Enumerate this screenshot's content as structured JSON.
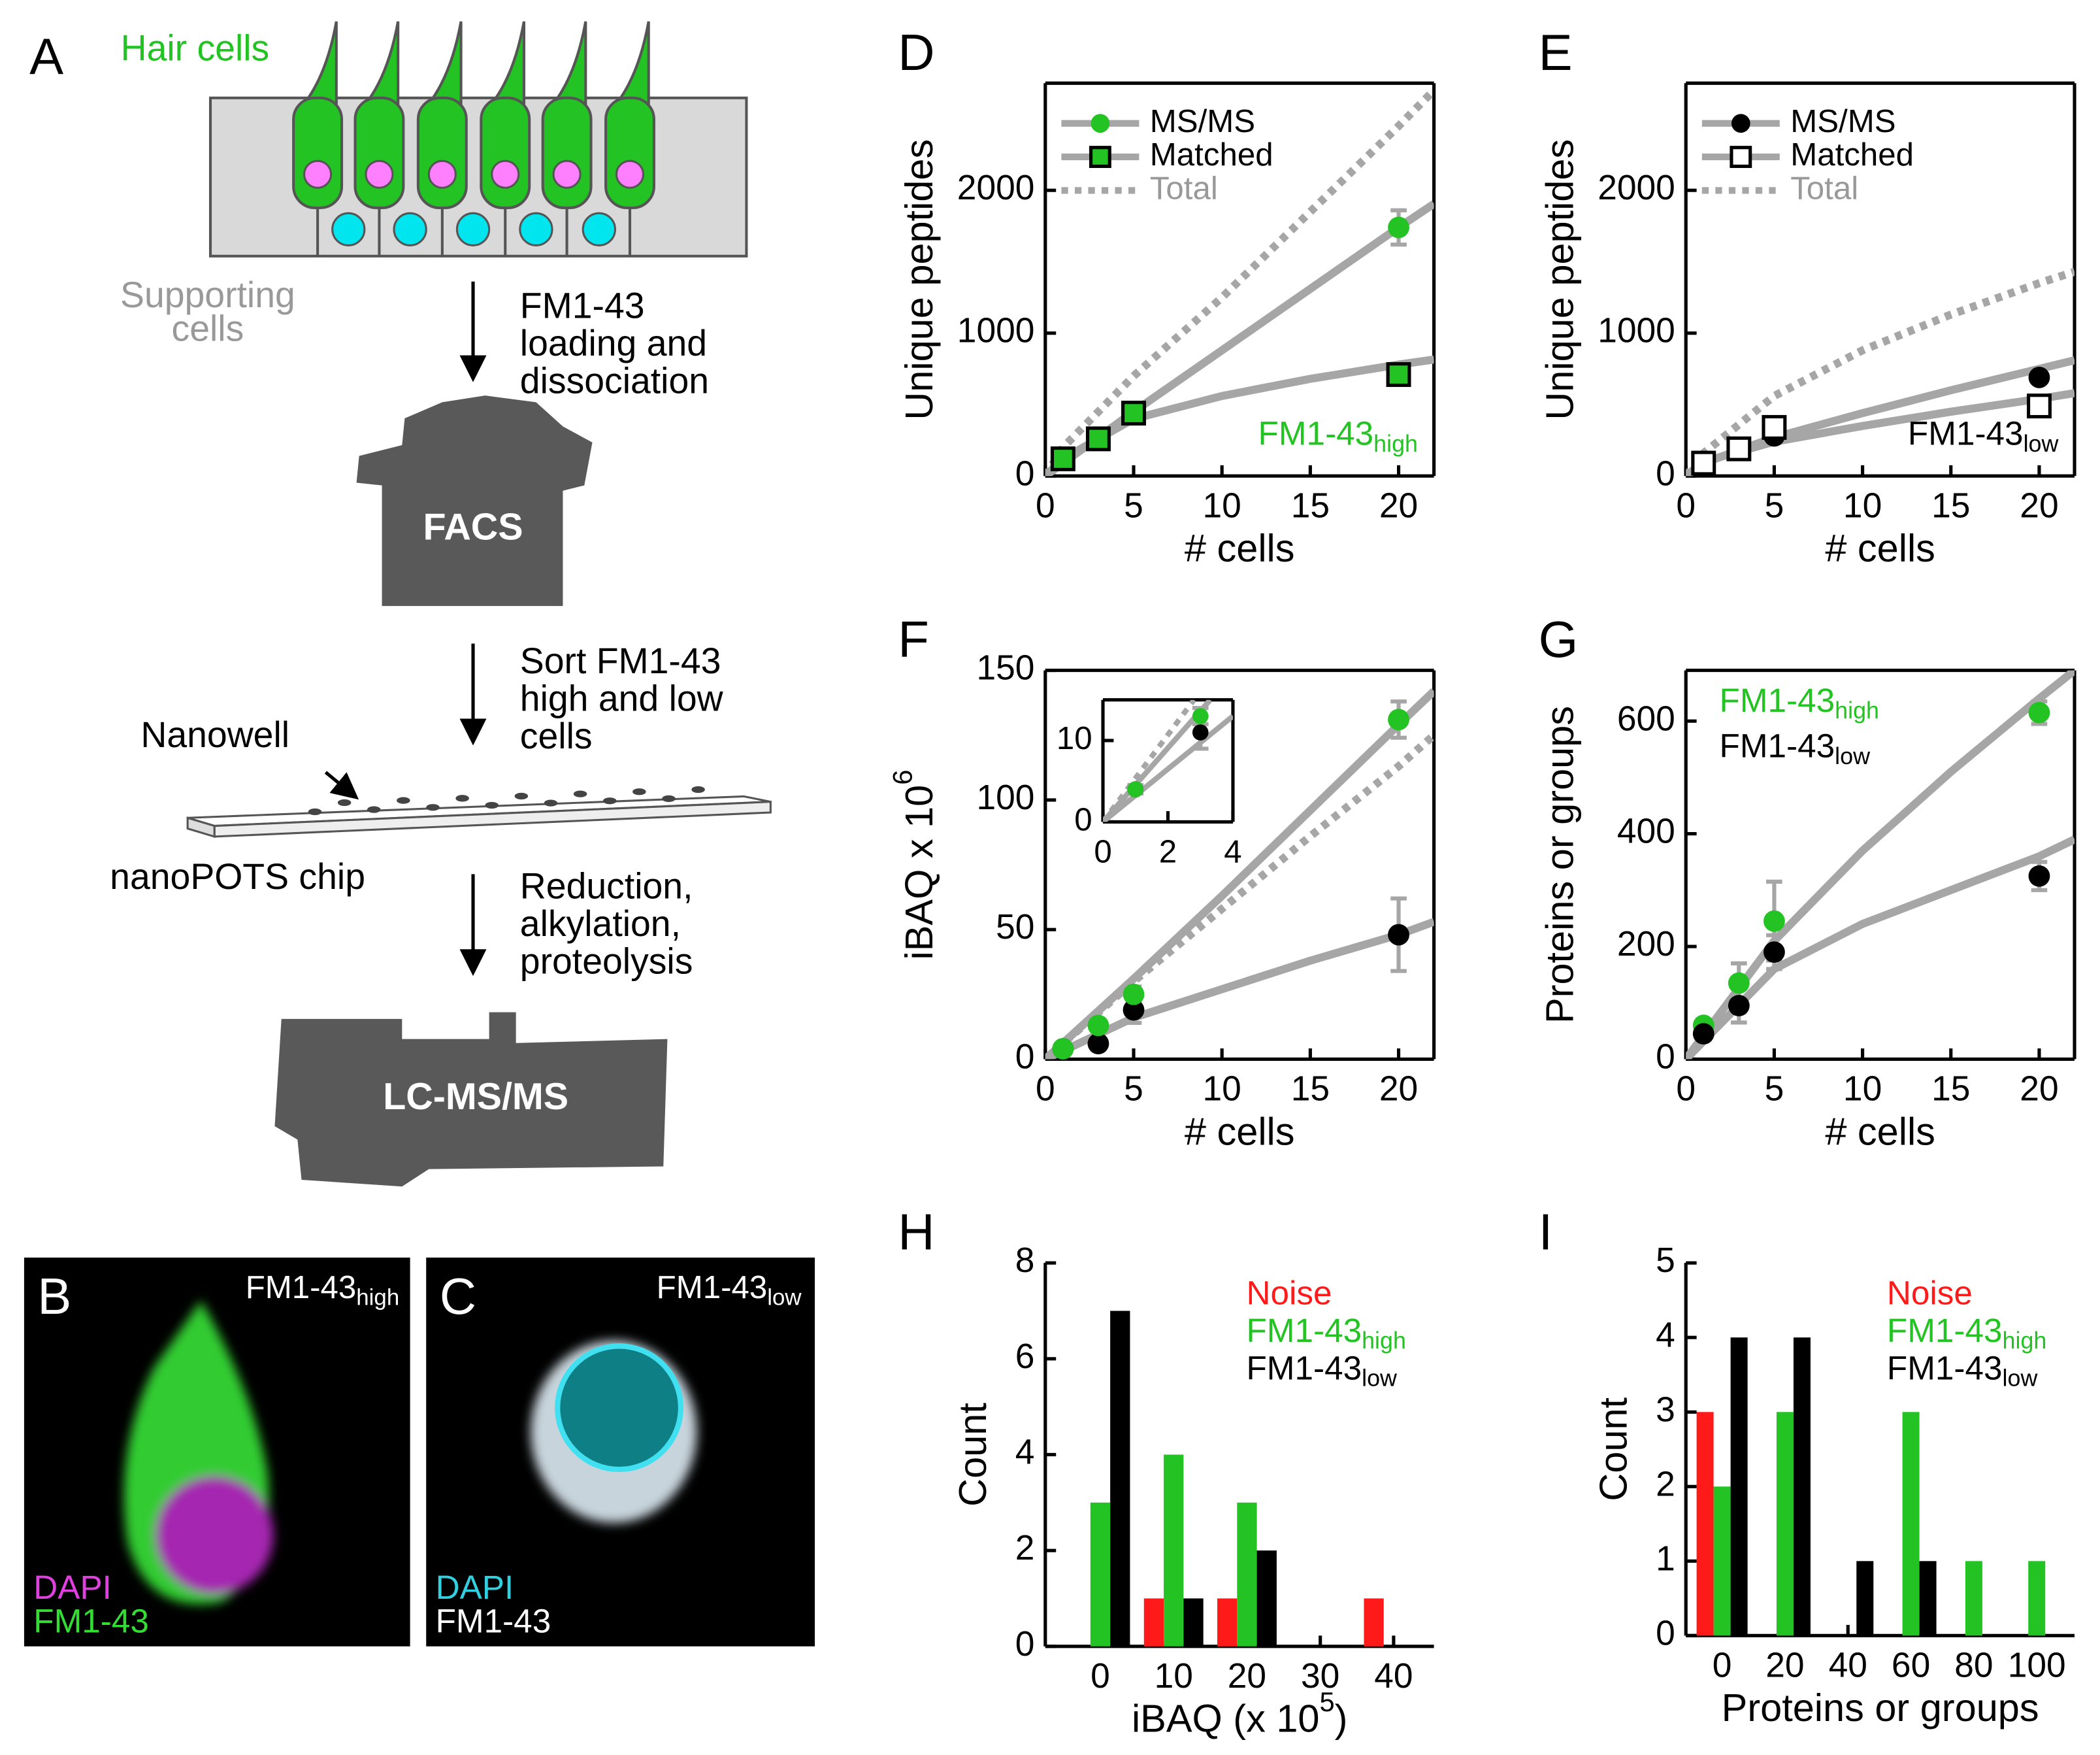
{
  "diagram": {
    "label": "A",
    "hair_cells": "Hair cells",
    "supporting_cells": [
      "Supporting",
      "cells"
    ],
    "step1": [
      "FM1-43",
      "loading and",
      "dissociation"
    ],
    "facs": "FACS",
    "step2": [
      "Sort FM1-43",
      "high and low",
      "cells"
    ],
    "nanowell": "Nanowell",
    "chip": "nanoPOTS chip",
    "step3": [
      "Reduction,",
      "alkylation,",
      "proteolysis"
    ],
    "lcms": "LC-MS/MS"
  },
  "images": [
    {
      "label": "B",
      "title": {
        "text": "FM1-43",
        "sub": "high"
      },
      "channels": [
        "DAPI",
        "FM1-43"
      ]
    },
    {
      "label": "C",
      "title": {
        "text": "FM1-43",
        "sub": "low"
      },
      "channels": [
        "DAPI",
        "FM1-43"
      ]
    }
  ],
  "chart_data": [
    {
      "type": "scatter",
      "label": "D",
      "xlabel": "# cells",
      "ylabel": "Unique peptides",
      "xlim": [
        0,
        22
      ],
      "ylim": [
        0,
        2750
      ],
      "xticks": [
        0,
        5,
        10,
        15,
        20
      ],
      "yticks": [
        0,
        1000,
        2000
      ],
      "frame": true,
      "fit_color": "#a6a6a6",
      "legend": "upper left",
      "legend_style": "symbol",
      "annotation": {
        "text": "FM1-43",
        "sub": "high",
        "color": "#22c322"
      },
      "series": [
        {
          "name": "MS/MS",
          "label_color": "#000000",
          "marker": "circle",
          "color": "#22c322",
          "edge": "none",
          "x": [
            1,
            3,
            5,
            20
          ],
          "values": [
            120,
            270,
            450,
            1740
          ],
          "errors": [
            20,
            40,
            60,
            120
          ],
          "fit": {
            "x": [
              0,
              5,
              10,
              15,
              20,
              22
            ],
            "y": [
              0,
              450,
              880,
              1310,
              1740,
              1905
            ]
          }
        },
        {
          "name": "Matched",
          "label_color": "#000000",
          "marker": "square",
          "color": "#22c322",
          "edge": "#000000",
          "x": [
            1,
            3,
            5,
            20
          ],
          "values": [
            120,
            260,
            440,
            710
          ],
          "errors": [
            20,
            40,
            60,
            40
          ],
          "fit": {
            "x": [
              0,
              1,
              5,
              10,
              15,
              20,
              22
            ],
            "y": [
              0,
              120,
              400,
              560,
              680,
              780,
              815
            ]
          }
        },
        {
          "name": "Total",
          "label_color": "#999999",
          "dashed": true,
          "fit": {
            "x": [
              0,
              1,
              5,
              10,
              15,
              20,
              22
            ],
            "y": [
              0,
              200,
              700,
              1250,
              1850,
              2450,
              2700
            ]
          }
        }
      ]
    },
    {
      "type": "scatter",
      "label": "E",
      "xlabel": "# cells",
      "ylabel": "Unique peptides",
      "xlim": [
        0,
        22
      ],
      "ylim": [
        0,
        2750
      ],
      "xticks": [
        0,
        5,
        10,
        15,
        20
      ],
      "yticks": [
        0,
        1000,
        2000
      ],
      "frame": true,
      "fit_color": "#a6a6a6",
      "legend": "upper left",
      "legend_style": "symbol",
      "annotation": {
        "text": "FM1-43",
        "sub": "low",
        "color": "#000000"
      },
      "series": [
        {
          "name": "MS/MS",
          "label_color": "#000000",
          "marker": "circle",
          "color": "#000000",
          "edge": "none",
          "x": [
            1,
            3,
            5,
            20
          ],
          "values": [
            80,
            200,
            280,
            690
          ],
          "errors": [
            10,
            20,
            30,
            30
          ],
          "fit": {
            "x": [
              0,
              1,
              5,
              10,
              15,
              20,
              22
            ],
            "y": [
              0,
              90,
              270,
              440,
              600,
              750,
              810
            ]
          }
        },
        {
          "name": "Matched",
          "label_color": "#000000",
          "marker": "square",
          "color": "#ffffff",
          "edge": "#000000",
          "x": [
            1,
            3,
            5,
            20
          ],
          "values": [
            90,
            190,
            340,
            490
          ],
          "errors": [
            10,
            20,
            30,
            30
          ],
          "fit": {
            "x": [
              0,
              1,
              5,
              10,
              15,
              20,
              22
            ],
            "y": [
              0,
              100,
              240,
              350,
              450,
              540,
              580
            ]
          }
        },
        {
          "name": "Total",
          "label_color": "#999999",
          "dashed": true,
          "fit": {
            "x": [
              0,
              1,
              5,
              10,
              15,
              20,
              22
            ],
            "y": [
              0,
              160,
              560,
              880,
              1130,
              1350,
              1430
            ]
          }
        }
      ]
    },
    {
      "type": "scatter",
      "label": "F",
      "xlabel": "# cells",
      "ylabel": {
        "text": "iBAQ x 10",
        "sup": "6"
      },
      "xlim": [
        0,
        22
      ],
      "ylim": [
        0,
        150
      ],
      "xticks": [
        0,
        5,
        10,
        15,
        20
      ],
      "yticks": [
        0,
        50,
        100,
        150
      ],
      "frame": true,
      "fit_color": "#a6a6a6",
      "series": [
        {
          "marker": "circle",
          "color": "#000000",
          "edge": "none",
          "x": [
            1,
            3,
            5,
            20
          ],
          "values": [
            4,
            6,
            19,
            48
          ],
          "errors": [
            1,
            2,
            5,
            14
          ],
          "fit": {
            "x": [
              0,
              5,
              10,
              15,
              20,
              22
            ],
            "y": [
              0,
              16,
              27,
              38,
              48,
              53
            ]
          }
        },
        {
          "marker": "circle",
          "color": "#22c322",
          "edge": "none",
          "x": [
            1,
            3,
            5,
            20
          ],
          "values": [
            4,
            13,
            25,
            131
          ],
          "errors": [
            1,
            2,
            3,
            7
          ],
          "fit": {
            "x": [
              0,
              5,
              10,
              15,
              20,
              22
            ],
            "y": [
              0,
              31,
              63,
              96,
              129,
              142
            ]
          }
        },
        {
          "dashed": true,
          "fit": {
            "x": [
              0,
              5,
              10,
              15,
              20,
              22
            ],
            "y": [
              0,
              30,
              58,
              86,
              113,
              125
            ]
          }
        }
      ],
      "inset": {
        "xlim": [
          0,
          4
        ],
        "ylim": [
          0,
          15
        ],
        "xticks": [
          0,
          2,
          4
        ],
        "yticks": [
          0,
          10
        ],
        "frame": true,
        "fit_color": "#a6a6a6",
        "series": [
          {
            "marker": "circle",
            "color": "#000000",
            "edge": "none",
            "x": [
              1,
              3
            ],
            "values": [
              4,
              11
            ],
            "errors": [
              0.5,
              2
            ],
            "fit": {
              "x": [
                0,
                4
              ],
              "y": [
                0,
                13
              ]
            }
          },
          {
            "marker": "circle",
            "color": "#22c322",
            "edge": "none",
            "x": [
              1,
              3
            ],
            "values": [
              4,
              13
            ],
            "errors": [
              0.5,
              1
            ],
            "fit": {
              "x": [
                0,
                3.3
              ],
              "y": [
                0,
                15
              ]
            }
          },
          {
            "dashed": true,
            "fit": {
              "x": [
                0,
                2.8
              ],
              "y": [
                0,
                15
              ]
            }
          }
        ]
      }
    },
    {
      "type": "scatter",
      "label": "G",
      "xlabel": "# cells",
      "ylabel": "Proteins or groups",
      "xlim": [
        0,
        22
      ],
      "ylim": [
        0,
        690
      ],
      "xticks": [
        0,
        5,
        10,
        15,
        20
      ],
      "yticks": [
        0,
        200,
        400,
        600
      ],
      "frame": true,
      "fit_color": "#a6a6a6",
      "legend": "upper left",
      "legend_style": "text",
      "series": [
        {
          "name": "FM1-43",
          "name_sub": "high",
          "label_color": "#22c322",
          "marker": "circle",
          "color": "#22c322",
          "edge": "none",
          "x": [
            1,
            3,
            5,
            20
          ],
          "values": [
            60,
            135,
            245,
            615
          ],
          "errors": [
            10,
            35,
            70,
            20
          ],
          "fit": {
            "x": [
              0,
              5,
              10,
              15,
              20,
              22
            ],
            "y": [
              0,
              210,
              370,
              510,
              640,
              690
            ]
          }
        },
        {
          "name": "FM1-43",
          "name_sub": "low",
          "label_color": "#000000",
          "marker": "circle",
          "color": "#000000",
          "edge": "none",
          "x": [
            1,
            3,
            5,
            20
          ],
          "values": [
            45,
            95,
            190,
            325
          ],
          "errors": [
            8,
            30,
            30,
            25
          ],
          "fit": {
            "x": [
              0,
              5,
              10,
              15,
              20,
              22
            ],
            "y": [
              0,
              160,
              240,
              300,
              360,
              390
            ]
          }
        }
      ]
    },
    {
      "type": "bar",
      "label": "H",
      "xlabel": {
        "text": "iBAQ (x 10",
        "sup": "5",
        "tail": ")"
      },
      "ylabel": "Count",
      "categories": [
        0,
        10,
        20,
        30,
        40
      ],
      "xlim": [
        -7.5,
        45.5
      ],
      "ylim": [
        0,
        8
      ],
      "yticks": [
        0,
        2,
        4,
        6,
        8
      ],
      "frame": false,
      "legend": "upper right",
      "legend_style": "text",
      "series": [
        {
          "name": "Noise",
          "label_color": "#ff1a1a",
          "color": "#ff1a1a",
          "values": [
            0,
            1,
            1,
            0,
            1
          ]
        },
        {
          "name": "FM1-43",
          "name_sub": "high",
          "label_color": "#22c322",
          "color": "#22c322",
          "values": [
            3,
            4,
            3,
            0,
            0
          ]
        },
        {
          "name": "FM1-43",
          "name_sub": "low",
          "label_color": "#000000",
          "color": "#000000",
          "values": [
            7,
            1,
            2,
            0,
            0
          ]
        }
      ]
    },
    {
      "type": "bar",
      "label": "I",
      "xlabel": "Proteins or groups",
      "ylabel": "Count",
      "categories": [
        0,
        20,
        40,
        60,
        80,
        100
      ],
      "xlim": [
        -11.5,
        112
      ],
      "ylim": [
        0,
        5
      ],
      "yticks": [
        0,
        1,
        2,
        3,
        4,
        5
      ],
      "frame": false,
      "legend": "upper right",
      "legend_style": "text",
      "series": [
        {
          "name": "Noise",
          "label_color": "#ff1a1a",
          "color": "#ff1a1a",
          "values": [
            3,
            0,
            0,
            0,
            0,
            0
          ]
        },
        {
          "name": "FM1-43",
          "name_sub": "high",
          "label_color": "#22c322",
          "color": "#22c322",
          "values": [
            2,
            3,
            0,
            3,
            1,
            1
          ]
        },
        {
          "name": "FM1-43",
          "name_sub": "low",
          "label_color": "#000000",
          "color": "#000000",
          "values": [
            4,
            4,
            1,
            1,
            0,
            0
          ]
        }
      ]
    }
  ]
}
